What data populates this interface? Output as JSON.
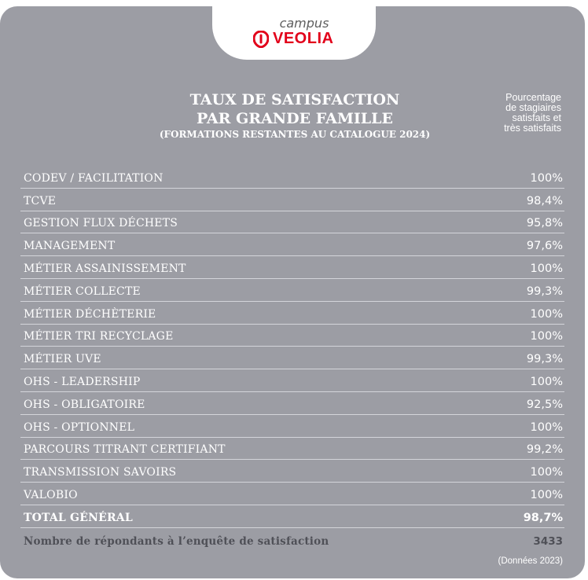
{
  "logo": {
    "campus": "campus",
    "brand": "VEOLIA",
    "brand_color": "#e2001a"
  },
  "title": {
    "line1": "TAUX DE SATISFACTION",
    "line2": "PAR GRANDE FAMILLE",
    "line3": "(FORMATIONS RESTANTES AU CATALOGUE 2024)"
  },
  "note": {
    "line1": "Pourcentage",
    "line2": "de stagiaires",
    "line3": "satisfaits et",
    "line4": "très satisfaits"
  },
  "rows": [
    {
      "label": "CODEV / FACILITATION",
      "value": "100%"
    },
    {
      "label": "TCVE",
      "value": "98,4%"
    },
    {
      "label": "GESTION FLUX DÉCHETS",
      "value": "95,8%"
    },
    {
      "label": "MANAGEMENT",
      "value": "97,6%"
    },
    {
      "label": "MÉTIER ASSAINISSEMENT",
      "value": "100%"
    },
    {
      "label": "MÉTIER COLLECTE",
      "value": "99,3%"
    },
    {
      "label": "MÉTIER DÉCHÈTERIE",
      "value": "100%"
    },
    {
      "label": "MÉTIER TRI RECYCLAGE",
      "value": "100%"
    },
    {
      "label": "MÉTIER UVE",
      "value": "99,3%"
    },
    {
      "label": "OHS - LEADERSHIP",
      "value": "100%"
    },
    {
      "label": "OHS - OBLIGATOIRE",
      "value": "92,5%"
    },
    {
      "label": "OHS - OPTIONNEL",
      "value": "100%"
    },
    {
      "label": "PARCOURS TITRANT CERTIFIANT",
      "value": "99,2%"
    },
    {
      "label": "TRANSMISSION SAVOIRS",
      "value": "100%"
    },
    {
      "label": "VALOBIO",
      "value": "100%"
    }
  ],
  "total": {
    "label": "TOTAL GÉNÉRAL",
    "value": "98,7%"
  },
  "respondents": {
    "label": "Nombre de répondants à l’enquête de satisfaction",
    "value": "3433"
  },
  "source": "(Données 2023)",
  "colors": {
    "card_background": "#9c9da4",
    "text": "#ffffff",
    "respondents_text": "#4f5057"
  }
}
